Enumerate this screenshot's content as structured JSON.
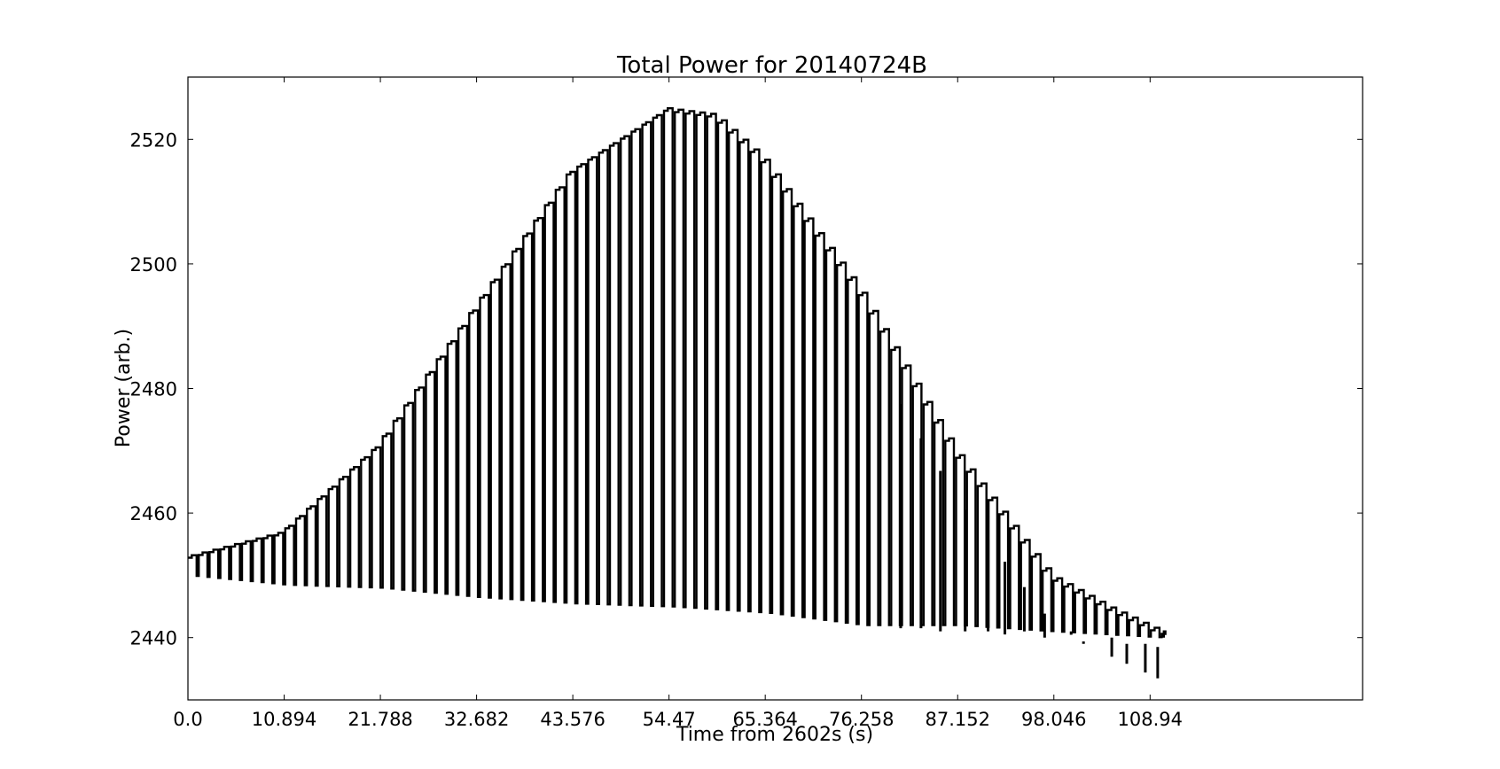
{
  "chart_data": {
    "type": "line",
    "title": "Total Power for 20140724B",
    "xlabel": "Time from 2602s (s)",
    "ylabel": "Power (arb.)",
    "xlim": [
      0,
      133
    ],
    "ylim": [
      2430,
      2530
    ],
    "xticks": [
      0.0,
      10.894,
      21.788,
      32.682,
      43.576,
      54.47,
      65.364,
      76.258,
      87.152,
      98.046,
      108.94
    ],
    "xtick_labels": [
      "0.0",
      "10.894",
      "21.788",
      "32.682",
      "43.576",
      "54.47",
      "65.364",
      "76.258",
      "87.152",
      "98.046",
      "108.94"
    ],
    "yticks": [
      2440,
      2460,
      2480,
      2500,
      2520
    ],
    "ytick_labels": [
      "2440",
      "2460",
      "2480",
      "2500",
      "2520"
    ],
    "grid": false,
    "series": [
      {
        "style": "square-wave",
        "color": "#000000",
        "cycle_period": 1.225,
        "x_end": 110.5,
        "upper_envelope": [
          [
            0,
            2453
          ],
          [
            10.9,
            2457
          ],
          [
            21.8,
            2471
          ],
          [
            32.7,
            2493
          ],
          [
            43.6,
            2515
          ],
          [
            54.5,
            2525
          ],
          [
            59.9,
            2524
          ],
          [
            65.4,
            2517
          ],
          [
            76.3,
            2496
          ],
          [
            87.2,
            2470
          ],
          [
            98.0,
            2450
          ],
          [
            104.5,
            2445
          ],
          [
            110.5,
            2441
          ]
        ],
        "lower_envelope": [
          [
            0,
            2450
          ],
          [
            10.9,
            2448.5
          ],
          [
            21.8,
            2448
          ],
          [
            32.7,
            2446.5
          ],
          [
            43.6,
            2445.5
          ],
          [
            54.5,
            2445
          ],
          [
            65.4,
            2444
          ],
          [
            76.3,
            2442
          ],
          [
            87.2,
            2442
          ],
          [
            98.0,
            2441
          ],
          [
            110.5,
            2440
          ]
        ],
        "dips": [
          [
            80.7,
            2441.5
          ],
          [
            83.0,
            2441.5
          ],
          [
            85.2,
            2441
          ],
          [
            88.0,
            2441
          ],
          [
            90.6,
            2441
          ],
          [
            92.5,
            2440.5
          ],
          [
            94.7,
            2441
          ],
          [
            97.0,
            2440
          ],
          [
            100.0,
            2441
          ],
          [
            101.4,
            2439
          ],
          [
            104.6,
            2440
          ],
          [
            106.3,
            2439
          ],
          [
            108.4,
            2439
          ],
          [
            109.8,
            2438.5
          ]
        ]
      }
    ]
  }
}
